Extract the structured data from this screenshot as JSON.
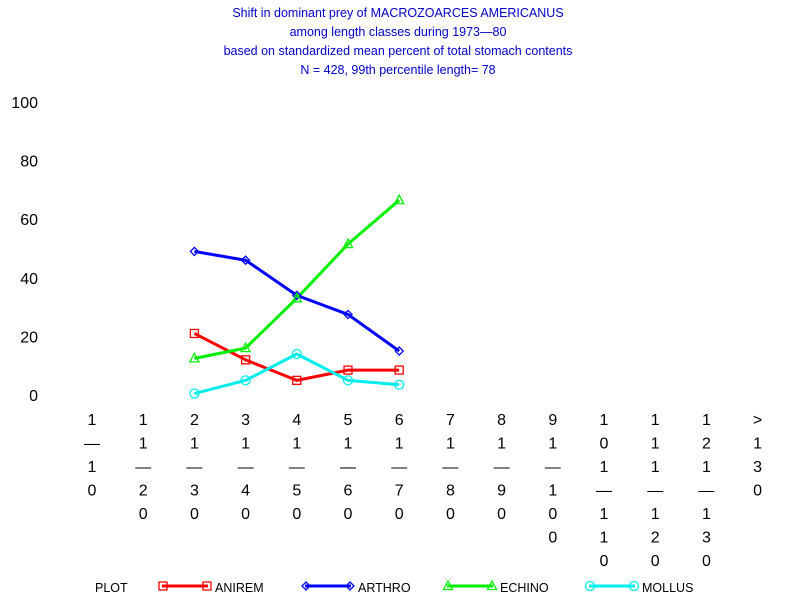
{
  "chart_data": {
    "type": "line",
    "title_lines": [
      "Shift in dominant prey of MACROZOARCES AMERICANUS",
      "among length classes during 1973—80",
      "based on standardized mean percent of  total stomach contents",
      "N =  428, 99th percentile  length= 78"
    ],
    "ylim": [
      0,
      100
    ],
    "yticks": [
      "0",
      "20",
      "40",
      "60",
      "80",
      "100"
    ],
    "categories": [
      "1-10",
      "11-20",
      "21-30",
      "31-40",
      "41-50",
      "51-60",
      "61-70",
      "71-80",
      "81-90",
      "91-100",
      "101-110",
      "111-120",
      "121-130",
      ">130"
    ],
    "category_label_lines": [
      [
        "1",
        "—",
        "1",
        "0"
      ],
      [
        "1",
        "1",
        "—",
        "2",
        "0"
      ],
      [
        "2",
        "1",
        "—",
        "3",
        "0"
      ],
      [
        "3",
        "1",
        "—",
        "4",
        "0"
      ],
      [
        "4",
        "1",
        "—",
        "5",
        "0"
      ],
      [
        "5",
        "1",
        "—",
        "6",
        "0"
      ],
      [
        "6",
        "1",
        "—",
        "7",
        "0"
      ],
      [
        "7",
        "1",
        "—",
        "8",
        "0"
      ],
      [
        "8",
        "1",
        "—",
        "9",
        "0"
      ],
      [
        "9",
        "1",
        "—",
        "1",
        "0",
        "0"
      ],
      [
        "1",
        "0",
        "1",
        "—",
        "1",
        "1",
        "0"
      ],
      [
        "1",
        "1",
        "1",
        "—",
        "1",
        "2",
        "0"
      ],
      [
        "1",
        "2",
        "1",
        "—",
        "1",
        "3",
        "0"
      ],
      [
        ">",
        "1",
        "3",
        "0"
      ]
    ],
    "legend_title": "PLOT",
    "series": [
      {
        "name": "ANIREM",
        "color": "#ff0000",
        "marker": "square",
        "values": [
          null,
          null,
          21,
          12,
          5,
          8.5,
          8.5,
          null,
          null,
          null,
          null,
          null,
          null,
          null
        ]
      },
      {
        "name": "ARTHRO",
        "color": "#0000ff",
        "marker": "diamond",
        "values": [
          null,
          null,
          49,
          46,
          34,
          27.5,
          15,
          null,
          null,
          null,
          null,
          null,
          null,
          null
        ]
      },
      {
        "name": "ECHINO",
        "color": "#00ee00",
        "marker": "triangle",
        "values": [
          null,
          null,
          12.5,
          16,
          33,
          51.5,
          66.5,
          null,
          null,
          null,
          null,
          null,
          null,
          null
        ]
      },
      {
        "name": "MOLLUS",
        "color": "#00eeee",
        "marker": "circle",
        "values": [
          null,
          null,
          0.5,
          5,
          14,
          5,
          3.5,
          null,
          null,
          null,
          null,
          null,
          null,
          null
        ]
      }
    ]
  }
}
